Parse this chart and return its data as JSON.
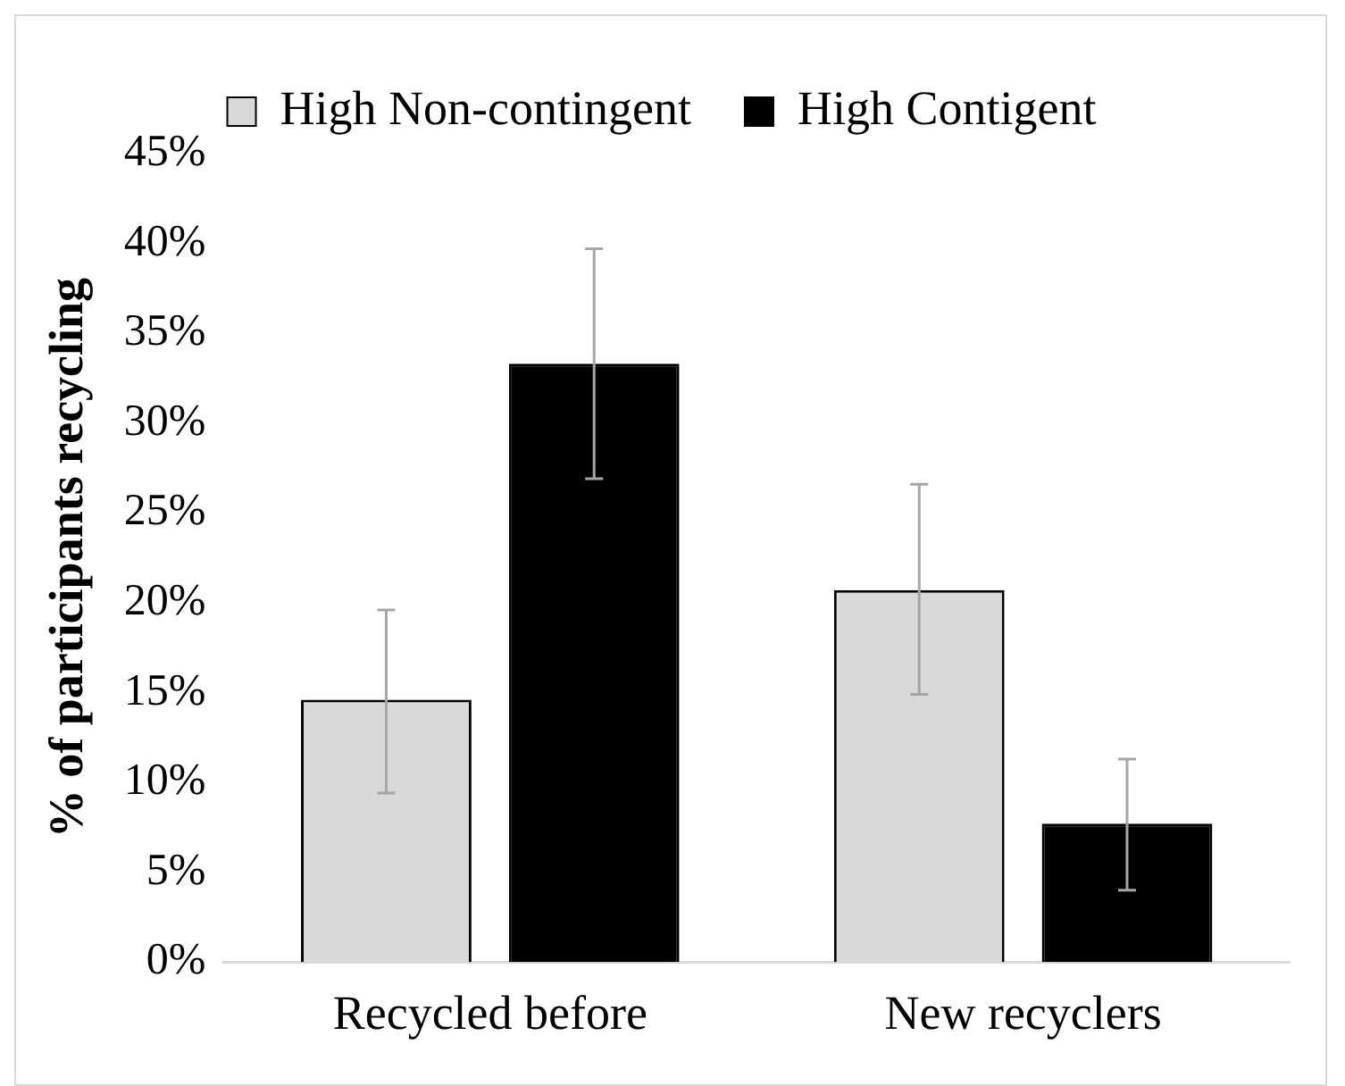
{
  "chart_data": {
    "type": "bar",
    "ylabel": "% of participants recycling",
    "categories": [
      "Recycled before",
      "New recyclers"
    ],
    "series": [
      {
        "name": "High Non-contingent",
        "color": "#d9d9d9",
        "values": [
          14.6,
          20.7
        ],
        "errors": [
          [
            9.4,
            19.6
          ],
          [
            14.9,
            26.6
          ]
        ]
      },
      {
        "name": "High Contigent",
        "color": "#000000",
        "values": [
          33.3,
          7.7
        ],
        "errors": [
          [
            26.9,
            39.7
          ],
          [
            4.0,
            11.3
          ]
        ]
      }
    ],
    "ylim": [
      0,
      45
    ],
    "yticks": [
      {
        "value": 0,
        "label": "0%"
      },
      {
        "value": 5,
        "label": "5%"
      },
      {
        "value": 10,
        "label": "10%"
      },
      {
        "value": 15,
        "label": "15%"
      },
      {
        "value": 20,
        "label": "20%"
      },
      {
        "value": 25,
        "label": "25%"
      },
      {
        "value": 30,
        "label": "30%"
      },
      {
        "value": 35,
        "label": "35%"
      },
      {
        "value": 40,
        "label": "40%"
      },
      {
        "value": 45,
        "label": "45%"
      }
    ],
    "grid": false,
    "legend": "top"
  }
}
